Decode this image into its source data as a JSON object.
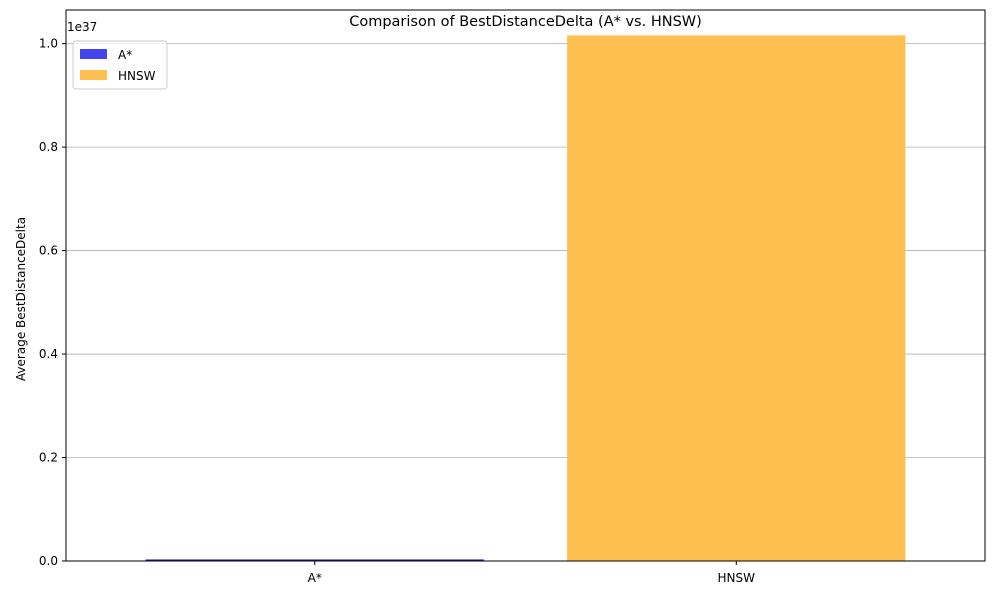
{
  "chart_data": {
    "type": "bar",
    "title": "Comparison of BestDistanceDelta (A* vs. HNSW)",
    "xlabel": "",
    "ylabel": "Average BestDistanceDelta",
    "y_multiplier_label": "1e37",
    "y_multiplier": 1e+37,
    "categories": [
      "A*",
      "HNSW"
    ],
    "values": [
      2e+34,
      1.015e+37
    ],
    "colors": [
      "#4444ee",
      "#fdbf50"
    ],
    "edge_colors": [
      "#1a1aa8",
      "#fdbf50"
    ],
    "ylim": [
      0,
      1.065e+37
    ],
    "y_ticks": [
      0,
      2e+36,
      4e+36,
      6e+36,
      8e+36,
      1e+37
    ],
    "y_tick_labels": [
      "0.0",
      "0.2",
      "0.4",
      "0.6",
      "0.8",
      "1.0"
    ],
    "grid": {
      "y": true,
      "x": false
    },
    "legend": {
      "placement": "top-left",
      "entries": [
        {
          "label": "A*",
          "color": "#4444ee"
        },
        {
          "label": "HNSW",
          "color": "#fdbf50"
        }
      ]
    }
  }
}
